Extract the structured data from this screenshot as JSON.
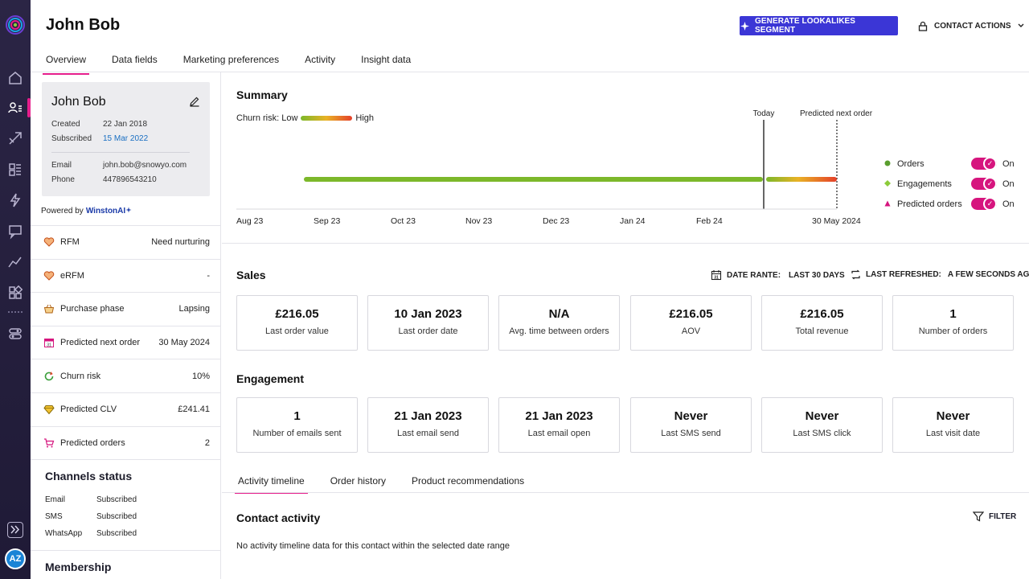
{
  "contact": {
    "name": "John Bob"
  },
  "header": {
    "lookalike_label": "GENERATE LOOKALIKES SEGMENT",
    "contact_actions_label": "CONTACT ACTIONS",
    "tabs": [
      {
        "label": "Overview"
      },
      {
        "label": "Data fields"
      },
      {
        "label": "Marketing preferences"
      },
      {
        "label": "Activity"
      },
      {
        "label": "Insight data"
      }
    ]
  },
  "rail": {
    "avatar_initials": "AZ"
  },
  "profile": {
    "name": "John Bob",
    "created_label": "Created",
    "created_value": "22 Jan 2018",
    "subscribed_label": "Subscribed",
    "subscribed_value": "15 Mar 2022",
    "email_label": "Email",
    "email_value": "john.bob@snowyo.com",
    "phone_label": "Phone",
    "phone_value": "447896543210"
  },
  "powered_by": {
    "label": "Powered by",
    "brand": "WinstonAI"
  },
  "attributes": [
    {
      "label": "RFM",
      "value": "Need nurturing"
    },
    {
      "label": "eRFM",
      "value": "-"
    },
    {
      "label": "Purchase phase",
      "value": "Lapsing"
    },
    {
      "label": "Predicted next order",
      "value": "30 May 2024"
    },
    {
      "label": "Churn risk",
      "value": "10%"
    },
    {
      "label": "Predicted CLV",
      "value": "£241.41"
    },
    {
      "label": "Predicted orders",
      "value": "2"
    }
  ],
  "channels": {
    "title": "Channels status",
    "rows": [
      {
        "channel": "Email",
        "status": "Subscribed"
      },
      {
        "channel": "SMS",
        "status": "Subscribed"
      },
      {
        "channel": "WhatsApp",
        "status": "Subscribed"
      }
    ]
  },
  "membership": {
    "title": "Membership"
  },
  "summary": {
    "title": "Summary",
    "churn_low": "Churn risk: Low",
    "churn_high": "High",
    "today_label": "Today",
    "predicted_label": "Predicted next order",
    "axis_labels": [
      "Aug 23",
      "Sep 23",
      "Oct 23",
      "Nov 23",
      "Dec 23",
      "Jan 24",
      "Feb 24",
      "30 May 2024"
    ],
    "legend": [
      {
        "label": "Orders",
        "state": "On",
        "color": "#5a9e2e"
      },
      {
        "label": "Engagements",
        "state": "On",
        "color": "#8ccb3a"
      },
      {
        "label": "Predicted orders",
        "state": "On",
        "color": "#d6157e"
      }
    ]
  },
  "sales": {
    "title": "Sales",
    "date_range_label": "DATE RANTE:",
    "date_range_value": "LAST 30 DAYS",
    "refreshed_label": "LAST REFRESHED:",
    "refreshed_value": "A FEW SECONDS AGO",
    "cards": [
      {
        "value": "£216.05",
        "label": "Last order value"
      },
      {
        "value": "10 Jan 2023",
        "label": "Last order date"
      },
      {
        "value": "N/A",
        "label": "Avg. time between orders"
      },
      {
        "value": "£216.05",
        "label": "AOV"
      },
      {
        "value": "£216.05",
        "label": "Total revenue"
      },
      {
        "value": "1",
        "label": "Number of orders"
      }
    ]
  },
  "engagement": {
    "title": "Engagement",
    "cards": [
      {
        "value": "1",
        "label": "Number of emails sent"
      },
      {
        "value": "21 Jan 2023",
        "label": "Last email send"
      },
      {
        "value": "21 Jan 2023",
        "label": "Last email open"
      },
      {
        "value": "Never",
        "label": "Last SMS send"
      },
      {
        "value": "Never",
        "label": "Last SMS click"
      },
      {
        "value": "Never",
        "label": "Last visit date"
      }
    ]
  },
  "subtabs": [
    {
      "label": "Activity timeline"
    },
    {
      "label": "Order history"
    },
    {
      "label": "Product recommendations"
    }
  ],
  "contact_activity": {
    "title": "Contact activity",
    "filter_label": "FILTER",
    "empty_message": "No activity timeline data for this contact within the selected date range"
  },
  "colors": {
    "accent": "#e61e8c",
    "primary_button": "#3b36d6",
    "rail_bg": "#2b2545",
    "link": "#1a6fc2"
  }
}
